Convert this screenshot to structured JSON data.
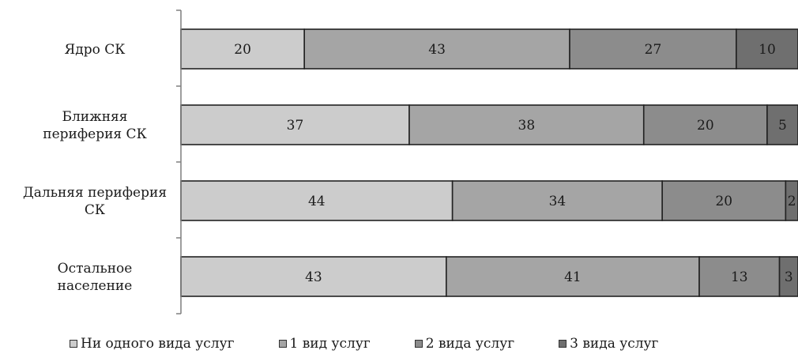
{
  "chart_data": {
    "type": "bar",
    "orientation": "horizontal",
    "stacked": true,
    "categories": [
      [
        "Ядро СК"
      ],
      [
        "Ближняя",
        "периферия СК"
      ],
      [
        "Дальняя периферия",
        "СК"
      ],
      [
        "Остальное",
        "население"
      ]
    ],
    "series": [
      {
        "name": "Ни одного вида услуг",
        "values": [
          20,
          37,
          44,
          43
        ],
        "color": "#cccccc"
      },
      {
        "name": "1 вид услуг",
        "values": [
          43,
          38,
          34,
          41
        ],
        "color": "#a5a5a5"
      },
      {
        "name": "2 вида услуг",
        "values": [
          27,
          20,
          20,
          13
        ],
        "color": "#8c8c8c"
      },
      {
        "name": "3 вида услуг",
        "values": [
          10,
          5,
          2,
          3
        ],
        "color": "#6f6f6f"
      }
    ],
    "data_labels": [
      [
        "20",
        "43",
        "27",
        "10"
      ],
      [
        "37",
        "38",
        "20",
        "5"
      ],
      [
        "44",
        "34",
        "20",
        "2"
      ],
      [
        "43",
        "41",
        "13",
        "3"
      ]
    ],
    "xlim": [
      0,
      100
    ],
    "legend_position": "bottom",
    "grid": false,
    "title": "",
    "xlabel": "",
    "ylabel": ""
  }
}
